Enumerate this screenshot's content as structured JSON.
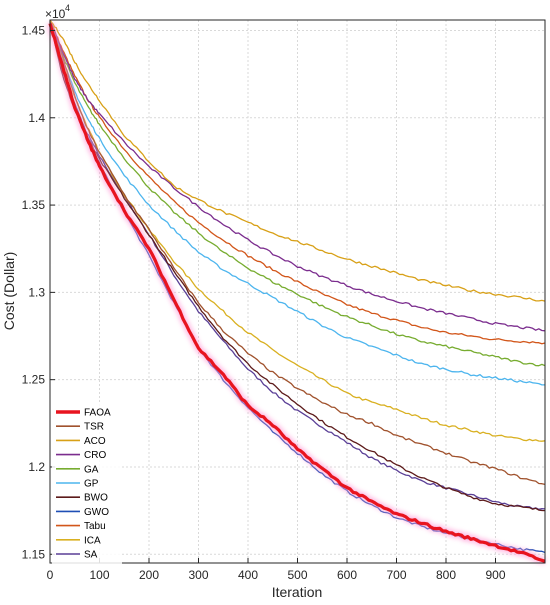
{
  "chart_data": {
    "type": "line",
    "xlabel": "Iteration",
    "ylabel": "Cost (Dollar)",
    "y_multiplier_base": "×10",
    "y_multiplier_exp": "4",
    "xlim": [
      0,
      1000
    ],
    "ylim": [
      11450,
      14560
    ],
    "x_ticks": [
      0,
      100,
      200,
      300,
      400,
      500,
      600,
      700,
      800,
      900
    ],
    "y_ticks": [
      11500,
      12000,
      12500,
      13000,
      13500,
      14000,
      14500
    ],
    "y_tick_labels": [
      "1.15",
      "1.2",
      "1.25",
      "1.3",
      "1.35",
      "1.4",
      "1.45"
    ],
    "grid": true,
    "legend_position": "bottom-left",
    "x": [
      0,
      25,
      50,
      75,
      100,
      150,
      200,
      250,
      300,
      350,
      400,
      450,
      500,
      550,
      600,
      650,
      700,
      750,
      800,
      850,
      900,
      950,
      1000
    ],
    "series": [
      {
        "name": "FAOA",
        "color": "#e8141f",
        "width": 3.2,
        "glow": true,
        "values": [
          14540,
          14300,
          14060,
          13880,
          13720,
          13470,
          13250,
          12960,
          12680,
          12530,
          12350,
          12240,
          12100,
          11990,
          11880,
          11800,
          11730,
          11680,
          11630,
          11590,
          11550,
          11510,
          11460
        ]
      },
      {
        "name": "TSR",
        "color": "#a0522d",
        "width": 1.3,
        "values": [
          14550,
          14350,
          14120,
          13940,
          13800,
          13560,
          13360,
          13140,
          12940,
          12780,
          12650,
          12540,
          12450,
          12370,
          12300,
          12250,
          12180,
          12130,
          12080,
          12030,
          11990,
          11940,
          11900
        ]
      },
      {
        "name": "ACO",
        "color": "#d8a017",
        "width": 1.3,
        "values": [
          14560,
          14460,
          14320,
          14200,
          14100,
          13900,
          13750,
          13610,
          13530,
          13460,
          13400,
          13340,
          13290,
          13240,
          13190,
          13150,
          13110,
          13070,
          13040,
          13010,
          12990,
          12970,
          12950
        ]
      },
      {
        "name": "CRO",
        "color": "#7b2d8e",
        "width": 1.3,
        "values": [
          14560,
          14380,
          14220,
          14110,
          14020,
          13860,
          13720,
          13600,
          13490,
          13390,
          13300,
          13220,
          13150,
          13090,
          13040,
          12990,
          12950,
          12910,
          12880,
          12850,
          12820,
          12800,
          12780
        ]
      },
      {
        "name": "GA",
        "color": "#77ac30",
        "width": 1.3,
        "values": [
          14560,
          14360,
          14200,
          14070,
          13960,
          13770,
          13600,
          13460,
          13340,
          13230,
          13140,
          13060,
          12990,
          12920,
          12860,
          12810,
          12760,
          12720,
          12690,
          12660,
          12630,
          12600,
          12580
        ]
      },
      {
        "name": "GP",
        "color": "#4db5ee",
        "width": 1.3,
        "values": [
          14550,
          14330,
          14150,
          14000,
          13880,
          13670,
          13500,
          13360,
          13230,
          13130,
          13050,
          12970,
          12890,
          12810,
          12740,
          12690,
          12640,
          12590,
          12560,
          12530,
          12510,
          12490,
          12470
        ]
      },
      {
        "name": "BWO",
        "color": "#5c1a1a",
        "width": 1.3,
        "values": [
          14550,
          14250,
          14040,
          13890,
          13760,
          13540,
          13330,
          13120,
          12920,
          12740,
          12590,
          12470,
          12360,
          12260,
          12170,
          12090,
          12010,
          11940,
          11880,
          11830,
          11790,
          11770,
          11750
        ]
      },
      {
        "name": "GWO",
        "color": "#1f4fb5",
        "width": 1.3,
        "values": [
          14550,
          14280,
          14080,
          13900,
          13740,
          13460,
          13210,
          12940,
          12680,
          12500,
          12340,
          12200,
          12080,
          11960,
          11860,
          11780,
          11710,
          11660,
          11620,
          11590,
          11560,
          11530,
          11510
        ]
      },
      {
        "name": "Tabu",
        "color": "#d2561a",
        "width": 1.3,
        "values": [
          14560,
          14390,
          14240,
          14110,
          14000,
          13820,
          13660,
          13520,
          13400,
          13300,
          13210,
          13130,
          13060,
          12990,
          12930,
          12880,
          12840,
          12800,
          12770,
          12750,
          12730,
          12720,
          12710
        ]
      },
      {
        "name": "ICA",
        "color": "#d9b021",
        "width": 1.3,
        "values": [
          14550,
          14330,
          14120,
          13950,
          13800,
          13560,
          13360,
          13180,
          13020,
          12890,
          12770,
          12670,
          12580,
          12500,
          12420,
          12370,
          12330,
          12280,
          12240,
          12210,
          12180,
          12160,
          12150
        ]
      },
      {
        "name": "SA",
        "color": "#5a3f96",
        "width": 1.3,
        "values": [
          14550,
          14270,
          14060,
          13910,
          13780,
          13550,
          13330,
          13100,
          12890,
          12720,
          12560,
          12430,
          12320,
          12230,
          12140,
          12050,
          11980,
          11920,
          11880,
          11840,
          11800,
          11770,
          11760
        ]
      }
    ]
  }
}
